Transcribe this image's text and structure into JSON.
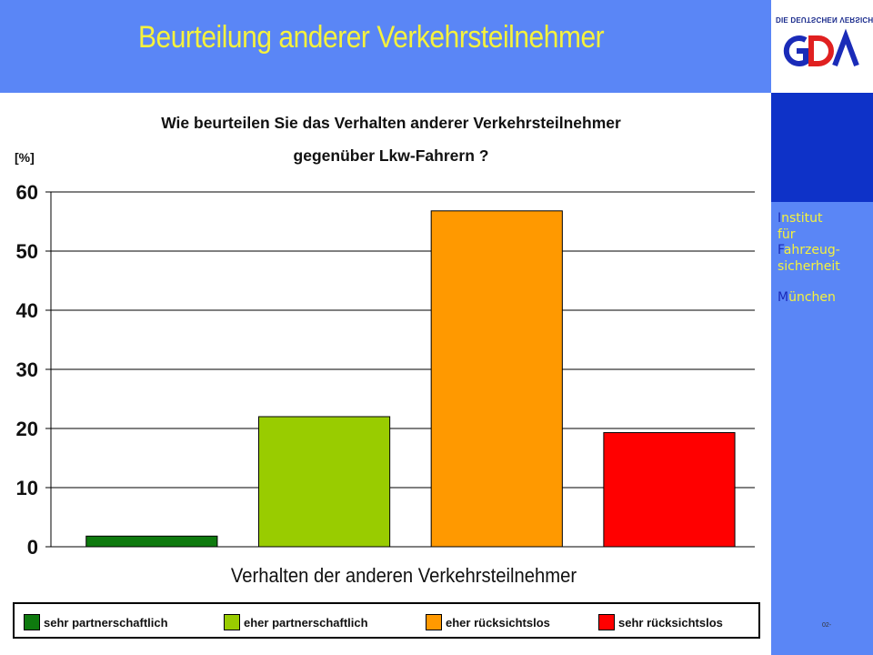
{
  "header": {
    "title": "Beurteilung anderer Verkehrsteilnehmer"
  },
  "logo": {
    "tagline": "DIE DEUTSCHEN VERSICHERER"
  },
  "sidebar": {
    "institute_lines": [
      {
        "first": "I",
        "rest": "nstitut"
      },
      {
        "first": "",
        "rest": "für"
      },
      {
        "first": "F",
        "rest": "ahrzeug-"
      },
      {
        "first": "",
        "rest": "sicherheit"
      },
      {
        "first": "M",
        "rest": "ünchen"
      }
    ]
  },
  "footer": {
    "slide_no": "02-"
  },
  "colors": {
    "header_bg": "#5a86f6",
    "title": "#f6f23c",
    "band": "#0e32c8"
  },
  "chart_data": {
    "type": "bar",
    "title": "Wie beurteilen Sie das Verhalten anderer Verkehrsteilnehmer gegenüber Lkw-Fahrern ?",
    "title_lines": [
      "Wie beurteilen Sie das Verhalten anderer Verkehrsteilnehmer",
      "gegenüber Lkw-Fahrern ?"
    ],
    "ylabel": "[%]",
    "xlabel": "Verhalten der anderen Verkehrsteilnehmer",
    "ylim": [
      0,
      60
    ],
    "yticks": [
      0,
      10,
      20,
      30,
      40,
      50,
      60
    ],
    "grid": true,
    "legend_position": "bottom",
    "categories": [
      "sehr partnerschaftlich",
      "eher partnerschaftlich",
      "eher rücksichtslos",
      "sehr  rücksichtslos"
    ],
    "values": [
      1.8,
      22,
      56.8,
      19.3
    ],
    "colors": [
      "#0e7a0e",
      "#99cc00",
      "#ff9900",
      "#ff0000"
    ]
  }
}
